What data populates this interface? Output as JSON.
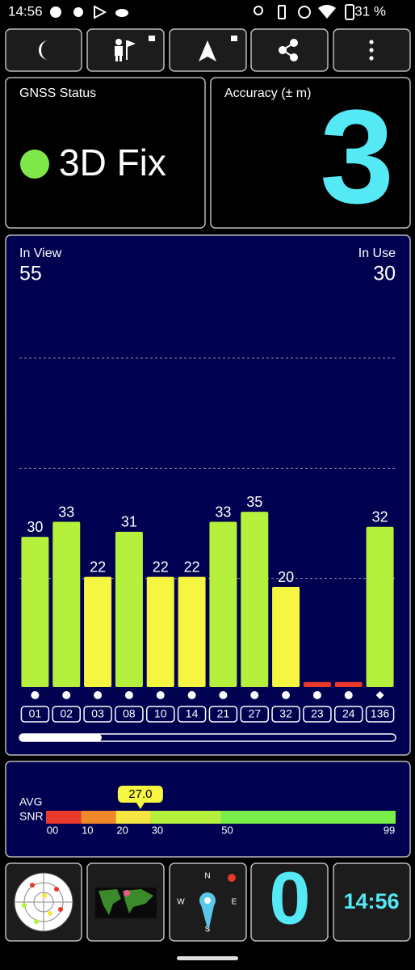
{
  "status_bar": {
    "time": "14:56",
    "battery": "31 %"
  },
  "gnss_status": {
    "title": "GNSS Status",
    "fix": "3D Fix"
  },
  "accuracy": {
    "title": "Accuracy (± m)",
    "value": 3
  },
  "chart_data": {
    "type": "bar",
    "in_view_label": "In View",
    "in_view": 55,
    "in_use_label": "In Use",
    "in_use": 30,
    "categories": [
      "01",
      "02",
      "03",
      "08",
      "10",
      "14",
      "21",
      "27",
      "32",
      "23",
      "24",
      "136"
    ],
    "values": [
      30,
      33,
      22,
      31,
      22,
      22,
      33,
      35,
      20,
      1,
      1,
      32
    ],
    "value_labels": [
      "30",
      "33",
      "22",
      "31",
      "22",
      "22",
      "33",
      "35",
      "20",
      null,
      null,
      "32"
    ],
    "colors": [
      "#b4f03c",
      "#b4f03c",
      "#f5f542",
      "#b4f03c",
      "#f5f542",
      "#f5f542",
      "#b4f03c",
      "#b4f03c",
      "#f5f542",
      "#e8392a",
      "#e8392a",
      "#b4f03c"
    ],
    "markers": [
      "circle",
      "circle",
      "circle",
      "circle",
      "circle",
      "circle",
      "circle",
      "circle",
      "circle",
      "circle",
      "circle",
      "diamond"
    ],
    "ylim": [
      0,
      66
    ]
  },
  "snr": {
    "avg_label": "AVG",
    "snr_label": "SNR",
    "average": {
      "value": 27,
      "label": "27.0"
    },
    "ticks": [
      {
        "value": 0,
        "label": "00"
      },
      10,
      20,
      30,
      50,
      99
    ],
    "colors": [
      "#e8392a",
      "#f0882a",
      "#f5e642",
      "#b4f03c",
      "#78ee48"
    ]
  },
  "speed": 0,
  "clock": "14:56",
  "compass": {
    "n": "N",
    "e": "E",
    "s": "S",
    "w": "W"
  }
}
